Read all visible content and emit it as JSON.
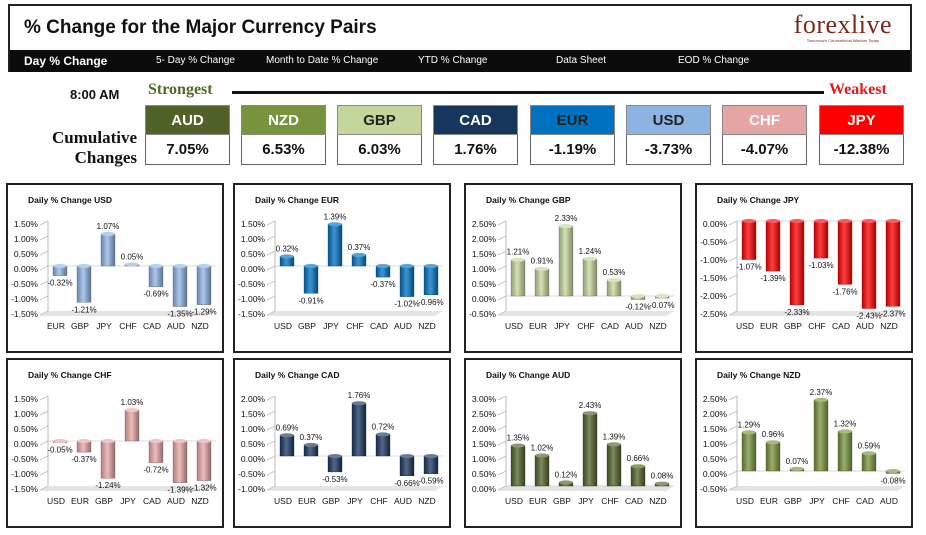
{
  "header": {
    "title": "% Change for the Major Currency Pairs",
    "logo": "forexlive",
    "logo_tagline": "Tomorrow's Conventional Wisdom Today"
  },
  "nav": {
    "items": [
      "Day % Change",
      "5- Day % Change",
      "Month to Date % Change",
      "YTD % Change",
      "Data Sheet",
      "EOD % Change"
    ]
  },
  "summary": {
    "time": "8:00 AM",
    "strongest_label": "Strongest",
    "weakest_label": "Weakest",
    "cumulative_label": "Cumulative Changes",
    "currencies": [
      {
        "code": "AUD",
        "value": "7.05%",
        "bg": "#4f6228",
        "fg": "#ffffff"
      },
      {
        "code": "NZD",
        "value": "6.53%",
        "bg": "#77933c",
        "fg": "#ffffff"
      },
      {
        "code": "GBP",
        "value": "6.03%",
        "bg": "#c3d69b",
        "fg": "#222222"
      },
      {
        "code": "CAD",
        "value": "1.76%",
        "bg": "#17365d",
        "fg": "#ffffff"
      },
      {
        "code": "EUR",
        "value": "-1.19%",
        "bg": "#0070c0",
        "fg": "#222222"
      },
      {
        "code": "USD",
        "value": "-3.73%",
        "bg": "#8db3e2",
        "fg": "#222222"
      },
      {
        "code": "CHF",
        "value": "-4.07%",
        "bg": "#e6a5a5",
        "fg": "#ffffff"
      },
      {
        "code": "JPY",
        "value": "-12.38%",
        "bg": "#ff0000",
        "fg": "#ffffff"
      }
    ]
  },
  "chart_data": [
    {
      "type": "bar",
      "title": "Daily % Change USD",
      "categories": [
        "EUR",
        "GBP",
        "JPY",
        "CHF",
        "CAD",
        "AUD",
        "NZD"
      ],
      "values": [
        -0.32,
        -1.21,
        1.07,
        0.05,
        -0.69,
        -1.35,
        -1.29
      ],
      "labels": [
        "-0.32%",
        "-1.21%",
        "1.07%",
        "0.05%",
        "-0.69%",
        "-1.35%",
        "-1.29%"
      ],
      "ticks": [
        "1.50%",
        "1.00%",
        "0.50%",
        "0.00%",
        "-0.50%",
        "-1.00%",
        "-1.50%"
      ],
      "ylim": [
        -1.5,
        1.5
      ],
      "color": "#8db3e2"
    },
    {
      "type": "bar",
      "title": "Daily % Change EUR",
      "categories": [
        "USD",
        "GBP",
        "JPY",
        "CHF",
        "CAD",
        "AUD",
        "NZD"
      ],
      "values": [
        0.32,
        -0.91,
        1.39,
        0.37,
        -0.37,
        -1.02,
        -0.96
      ],
      "labels": [
        "0.32%",
        "-0.91%",
        "1.39%",
        "0.37%",
        "-0.37%",
        "-1.02%",
        "-0.96%"
      ],
      "ticks": [
        "1.50%",
        "1.00%",
        "0.50%",
        "0.00%",
        "-0.50%",
        "-1.00%",
        "-1.50%"
      ],
      "ylim": [
        -1.5,
        1.5
      ],
      "color": "#0070c0"
    },
    {
      "type": "bar",
      "title": "Daily % Change GBP",
      "categories": [
        "USD",
        "EUR",
        "JPY",
        "CHF",
        "CAD",
        "AUD",
        "NZD"
      ],
      "values": [
        1.21,
        0.91,
        2.33,
        1.24,
        0.53,
        -0.12,
        -0.07
      ],
      "labels": [
        "1.21%",
        "0.91%",
        "2.33%",
        "1.24%",
        "0.53%",
        "-0.12%",
        "-0.07%"
      ],
      "ticks": [
        "2.50%",
        "2.00%",
        "1.50%",
        "1.00%",
        "0.50%",
        "0.00%",
        "-0.50%"
      ],
      "ylim": [
        -0.5,
        2.5
      ],
      "color": "#c3d69b"
    },
    {
      "type": "bar",
      "title": "Daily % Change JPY",
      "categories": [
        "USD",
        "EUR",
        "GBP",
        "CHF",
        "CAD",
        "AUD",
        "NZD"
      ],
      "values": [
        -1.07,
        -1.39,
        -2.33,
        -1.03,
        -1.76,
        -2.43,
        -2.37
      ],
      "labels": [
        "-1.07%",
        "-1.39%",
        "-2.33%",
        "-1.03%",
        "-1.76%",
        "-2.43%",
        "-2.37%"
      ],
      "ticks": [
        "0.00%",
        "-0.50%",
        "-1.00%",
        "-1.50%",
        "-2.00%",
        "-2.50%"
      ],
      "ylim": [
        -2.5,
        0
      ],
      "color": "#ff0000"
    },
    {
      "type": "bar",
      "title": "Daily % Change CHF",
      "categories": [
        "USD",
        "EUR",
        "GBP",
        "JPY",
        "CAD",
        "AUD",
        "NZD"
      ],
      "values": [
        -0.05,
        -0.37,
        -1.24,
        1.03,
        -0.72,
        -1.39,
        -1.32
      ],
      "labels": [
        "-0.05%",
        "-0.37%",
        "-1.24%",
        "1.03%",
        "-0.72%",
        "-1.39%",
        "-1.32%"
      ],
      "ticks": [
        "1.50%",
        "1.00%",
        "0.50%",
        "0.00%",
        "-0.50%",
        "-1.00%",
        "-1.50%"
      ],
      "ylim": [
        -1.5,
        1.5
      ],
      "color": "#e6a5a5"
    },
    {
      "type": "bar",
      "title": "Daily % Change CAD",
      "categories": [
        "USD",
        "EUR",
        "GBP",
        "JPY",
        "CHF",
        "AUD",
        "NZD"
      ],
      "values": [
        0.69,
        0.37,
        -0.53,
        1.76,
        0.72,
        -0.66,
        -0.59
      ],
      "labels": [
        "0.69%",
        "0.37%",
        "-0.53%",
        "1.76%",
        "0.72%",
        "-0.66%",
        "-0.59%"
      ],
      "ticks": [
        "2.00%",
        "1.50%",
        "1.00%",
        "0.50%",
        "0.00%",
        "-0.50%",
        "-1.00%"
      ],
      "ylim": [
        -1.0,
        2.0
      ],
      "color": "#17365d"
    },
    {
      "type": "bar",
      "title": "Daily % Change AUD",
      "categories": [
        "USD",
        "EUR",
        "GBP",
        "JPY",
        "CHF",
        "CAD",
        "NZD"
      ],
      "values": [
        1.35,
        1.02,
        0.12,
        2.43,
        1.39,
        0.66,
        0.08
      ],
      "labels": [
        "1.35%",
        "1.02%",
        "0.12%",
        "2.43%",
        "1.39%",
        "0.66%",
        "0.08%"
      ],
      "ticks": [
        "3.00%",
        "2.50%",
        "2.00%",
        "1.50%",
        "1.00%",
        "0.50%",
        "0.00%"
      ],
      "ylim": [
        0,
        3.0
      ],
      "color": "#4f6228"
    },
    {
      "type": "bar",
      "title": "Daily % Change NZD",
      "categories": [
        "USD",
        "EUR",
        "GBP",
        "JPY",
        "CHF",
        "CAD",
        "AUD"
      ],
      "values": [
        1.29,
        0.96,
        0.07,
        2.37,
        1.32,
        0.59,
        -0.08
      ],
      "labels": [
        "1.29%",
        "0.96%",
        "0.07%",
        "2.37%",
        "1.32%",
        "0.59%",
        "-0.08%"
      ],
      "ticks": [
        "2.50%",
        "2.00%",
        "1.50%",
        "1.00%",
        "0.50%",
        "0.00%",
        "-0.50%"
      ],
      "ylim": [
        -0.5,
        2.5
      ],
      "color": "#77933c"
    }
  ]
}
